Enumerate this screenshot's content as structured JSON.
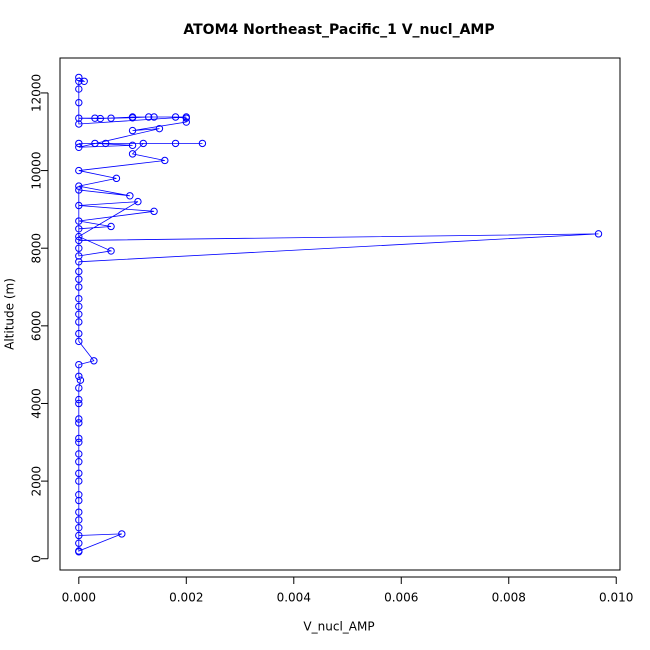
{
  "chart_data": {
    "type": "line",
    "title": "ATOM4 Northeast_Pacific_1 V_nucl_AMP",
    "x_label": "V_nucl_AMP",
    "y_label": "Altitude (m)",
    "color": "#0000ff",
    "x": [
      0,
      0,
      0,
      0.0008,
      0,
      0,
      0,
      0,
      0,
      0,
      0,
      0,
      0,
      0,
      0,
      0,
      0,
      0,
      0,
      0,
      0,
      3e-05,
      0,
      0,
      0.00028,
      0,
      0,
      0,
      0,
      0,
      0,
      0,
      0,
      0,
      0,
      0.00967,
      0,
      0,
      0.0006,
      0,
      0.0014,
      0,
      0.0011,
      0,
      0.0006,
      0,
      0,
      0,
      0.00095,
      0,
      0.0007,
      0,
      0.0016,
      0.001,
      0.0012,
      0.0023,
      0.0018,
      0,
      0.0005,
      0.0003,
      0.001,
      0,
      0.0015,
      0.001,
      0.002,
      0.002,
      0.0018,
      0.0013,
      0.001,
      0.0006,
      0.0003,
      0,
      0.0004,
      0.001,
      0.0014,
      0.002,
      0,
      0,
      0,
      0,
      0.0001,
      0
    ],
    "values": [
      180,
      400,
      600,
      640,
      200,
      800,
      1000,
      1200,
      1500,
      1650,
      2000,
      2200,
      2500,
      2700,
      3000,
      3100,
      3500,
      3600,
      4000,
      4100,
      4400,
      4600,
      4700,
      5000,
      5100,
      5600,
      5800,
      6100,
      6300,
      6500,
      6700,
      7000,
      7200,
      7400,
      7650,
      8370,
      8200,
      8500,
      8560,
      8700,
      8950,
      9100,
      9200,
      8300,
      7930,
      7800,
      8000,
      9500,
      9350,
      9600,
      9800,
      10000,
      10260,
      10430,
      10700,
      10700,
      10700,
      10700,
      10700,
      10700,
      10650,
      10600,
      11080,
      11030,
      11250,
      11350,
      11380,
      11380,
      11360,
      11350,
      11350,
      11350,
      11340,
      11380,
      11380,
      11380,
      11200,
      11750,
      12100,
      12300,
      12300,
      12400
    ],
    "xlim": [
      -0.00035,
      0.01007
    ],
    "ylim": [
      -290,
      12900
    ],
    "xticks": [
      {
        "value": 0,
        "label": "0.000"
      },
      {
        "value": 0.002,
        "label": "0.002"
      },
      {
        "value": 0.004,
        "label": "0.004"
      },
      {
        "value": 0.006,
        "label": "0.006"
      },
      {
        "value": 0.008,
        "label": "0.008"
      },
      {
        "value": 0.01,
        "label": "0.010"
      }
    ],
    "yticks": [
      0,
      2000,
      4000,
      6000,
      8000,
      10000,
      12000
    ]
  }
}
